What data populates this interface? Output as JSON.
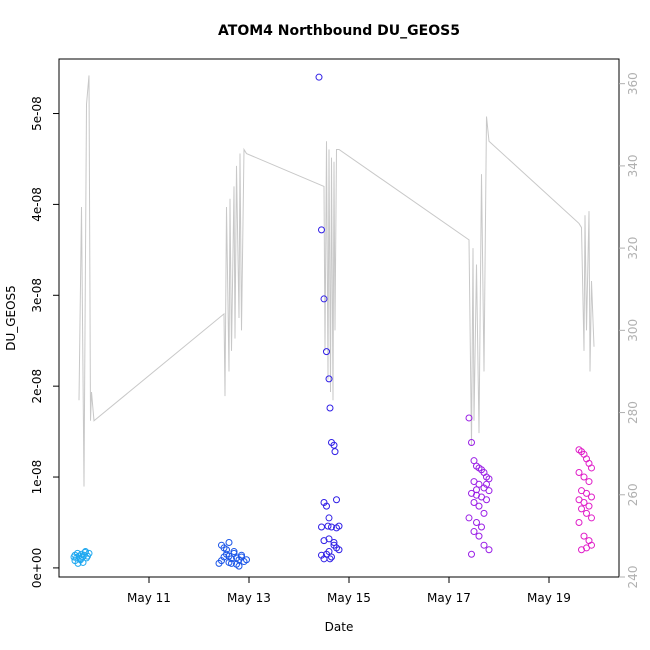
{
  "chart_data": {
    "type": "scatter",
    "title": "ATOM4 Northbound DU_GEOS5",
    "xlabel": "Date",
    "ylabel": "DU_GEOS5",
    "x_ticks": [
      "May 11",
      "May 13",
      "May 15",
      "May 17",
      "May 19"
    ],
    "x_tick_values": [
      11,
      13,
      15,
      17,
      19
    ],
    "xlim": [
      9.2,
      20.4
    ],
    "ylim_left": [
      -1e-09,
      5.6e-08
    ],
    "y_ticks_left": [
      0,
      1e-08,
      2e-08,
      3e-08,
      4e-08,
      5e-08
    ],
    "y_tick_labels_left": [
      "0e+00",
      "1e-08",
      "2e-08",
      "3e-08",
      "4e-08",
      "5e-08"
    ],
    "ylim_right": [
      240,
      366
    ],
    "y_ticks_right": [
      240,
      260,
      280,
      300,
      320,
      340,
      360
    ],
    "y_tick_labels_right": [
      "240",
      "260",
      "280",
      "300",
      "320",
      "340",
      "360"
    ],
    "grid": false,
    "colors": {
      "line": "#c8c8c8",
      "flight1": "#1fa8f0",
      "flight2": "#1a55e8",
      "flight3": "#2f1ee6",
      "flight4": "#9a1ee6",
      "flight5": "#e01ec8",
      "right_axis": "#b0b0b0"
    },
    "line_series": {
      "x": [
        9.6,
        9.65,
        9.7,
        9.72,
        9.75,
        9.8,
        9.83,
        9.85,
        9.9,
        12.5,
        12.52,
        12.55,
        12.6,
        12.62,
        12.65,
        12.7,
        12.72,
        12.75,
        12.8,
        12.82,
        12.85,
        12.9,
        12.95,
        14.5,
        14.52,
        14.55,
        14.58,
        14.6,
        14.63,
        14.65,
        14.68,
        14.7,
        14.72,
        14.75,
        14.8,
        17.4,
        17.45,
        17.48,
        17.5,
        17.55,
        17.6,
        17.65,
        17.7,
        17.75,
        17.8,
        19.6,
        19.65,
        19.7,
        19.72,
        19.75,
        19.8,
        19.82,
        19.85,
        19.9
      ],
      "y": [
        283,
        330,
        262,
        300,
        355,
        362,
        278,
        285,
        278,
        304,
        284,
        330,
        290,
        332,
        295,
        335,
        298,
        340,
        303,
        343,
        300,
        344,
        343,
        335,
        295,
        346,
        288,
        344,
        285,
        342,
        283,
        341,
        300,
        344,
        344,
        322,
        272,
        320,
        278,
        316,
        275,
        338,
        290,
        352,
        346,
        326,
        325,
        295,
        328,
        300,
        329,
        290,
        312,
        296
      ]
    },
    "series": [
      {
        "x": [
          9.5,
          9.52,
          9.55,
          9.57,
          9.6,
          9.62,
          9.65,
          9.67,
          9.7,
          9.72,
          9.75,
          9.77,
          9.8,
          9.52,
          9.58,
          9.63,
          9.68,
          9.73
        ],
        "y": [
          1.2e-09,
          1.4e-09,
          1.1e-09,
          1.6e-09,
          1.3e-09,
          1e-09,
          1.5e-09,
          1.2e-09,
          1.4e-09,
          1.7e-09,
          1.1e-09,
          1.3e-09,
          1.6e-09,
          8e-10,
          5e-10,
          9e-10,
          6e-10,
          1.8e-09
        ]
      },
      {
        "x": [
          12.4,
          12.45,
          12.5,
          12.55,
          12.6,
          12.65,
          12.7,
          12.75,
          12.8,
          12.85,
          12.9,
          12.5,
          12.6,
          12.7,
          12.8,
          12.55,
          12.65,
          12.75,
          12.85,
          12.95,
          12.45,
          12.6
        ],
        "y": [
          5e-10,
          8e-10,
          1.2e-09,
          1.5e-09,
          6e-10,
          1e-09,
          1.8e-09,
          4e-10,
          9e-10,
          1.2e-09,
          7e-10,
          2.2e-09,
          2.8e-09,
          1.6e-09,
          2e-10,
          2e-09,
          5e-10,
          1.1e-09,
          1.4e-09,
          9e-10,
          2.5e-09,
          1.3e-09
        ]
      },
      {
        "x": [
          14.4,
          14.45,
          14.5,
          14.55,
          14.6,
          14.62,
          14.65,
          14.7,
          14.72,
          14.75,
          14.5,
          14.55,
          14.6,
          14.58,
          14.65,
          14.45,
          14.5,
          14.7,
          14.75,
          14.8,
          14.6,
          14.55,
          14.65,
          14.5,
          14.7,
          14.6,
          14.75,
          14.8,
          14.45,
          14.62
        ],
        "y": [
          5.4e-08,
          3.72e-08,
          2.96e-08,
          2.38e-08,
          2.08e-08,
          1.76e-08,
          1.38e-08,
          1.35e-08,
          1.28e-08,
          7.5e-09,
          7.2e-09,
          6.8e-09,
          5.5e-09,
          4.6e-09,
          4.5e-09,
          4.5e-09,
          3e-09,
          2.5e-09,
          2.2e-09,
          2e-09,
          1.8e-09,
          1.5e-09,
          1.2e-09,
          1e-09,
          2.8e-09,
          3.2e-09,
          4.4e-09,
          4.6e-09,
          1.4e-09,
          1e-09
        ]
      },
      {
        "x": [
          17.4,
          17.45,
          17.5,
          17.55,
          17.6,
          17.65,
          17.7,
          17.75,
          17.8,
          17.5,
          17.6,
          17.7,
          17.8,
          17.45,
          17.55,
          17.65,
          17.75,
          17.5,
          17.6,
          17.7,
          17.4,
          17.55,
          17.65,
          17.5,
          17.6,
          17.7,
          17.8,
          17.45,
          17.75,
          17.55
        ],
        "y": [
          1.65e-08,
          1.38e-08,
          1.18e-08,
          1.12e-08,
          1.1e-08,
          1.08e-08,
          1.05e-08,
          1e-08,
          9.8e-09,
          9.5e-09,
          9.2e-09,
          8.8e-09,
          8.5e-09,
          8.2e-09,
          8e-09,
          7.8e-09,
          7.5e-09,
          7.2e-09,
          6.8e-09,
          6e-09,
          5.5e-09,
          5e-09,
          4.5e-09,
          4e-09,
          3.5e-09,
          2.5e-09,
          2e-09,
          1.5e-09,
          9.2e-09,
          8.6e-09
        ]
      },
      {
        "x": [
          19.6,
          19.65,
          19.7,
          19.75,
          19.8,
          19.85,
          19.6,
          19.7,
          19.8,
          19.65,
          19.75,
          19.85,
          19.6,
          19.7,
          19.8,
          19.65,
          19.75,
          19.85,
          19.6,
          19.7,
          19.8,
          19.75,
          19.65,
          19.85
        ],
        "y": [
          1.3e-08,
          1.28e-08,
          1.25e-08,
          1.2e-08,
          1.15e-08,
          1.1e-08,
          1.05e-08,
          1e-08,
          9.5e-09,
          8.5e-09,
          8.2e-09,
          7.8e-09,
          7.5e-09,
          7.2e-09,
          6.8e-09,
          6.5e-09,
          6e-09,
          5.5e-09,
          5e-09,
          3.5e-09,
          3e-09,
          2.2e-09,
          2e-09,
          2.5e-09
        ]
      }
    ]
  }
}
